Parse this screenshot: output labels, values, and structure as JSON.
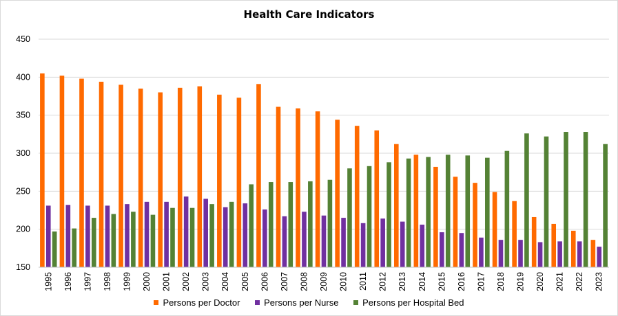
{
  "chart_data": {
    "type": "bar",
    "title": "Health Care Indicators",
    "xlabel": "",
    "ylabel": "",
    "ylim": [
      150,
      450
    ],
    "yticks": [
      150,
      200,
      250,
      300,
      350,
      400,
      450
    ],
    "grid": true,
    "legend_position": "bottom",
    "categories": [
      "1995",
      "1996",
      "1997",
      "1998",
      "1999",
      "2000",
      "2001",
      "2002",
      "2003",
      "2004",
      "2005",
      "2006",
      "2007",
      "2008",
      "2009",
      "2010",
      "2011",
      "2012",
      "2013",
      "2014",
      "2015",
      "2016",
      "2017",
      "2018",
      "2019",
      "2020",
      "2021",
      "2022",
      "2023"
    ],
    "series": [
      {
        "name": "Persons per Doctor",
        "color": "#ff6a00",
        "values": [
          405,
          402,
          398,
          394,
          390,
          385,
          380,
          386,
          388,
          377,
          373,
          391,
          361,
          359,
          355,
          344,
          336,
          330,
          312,
          298,
          282,
          269,
          261,
          249,
          237,
          216,
          207,
          198,
          186
        ]
      },
      {
        "name": "Persons per Nurse",
        "color": "#7030a0",
        "values": [
          231,
          232,
          231,
          231,
          233,
          236,
          236,
          243,
          240,
          229,
          234,
          226,
          217,
          223,
          218,
          215,
          208,
          214,
          210,
          206,
          196,
          195,
          189,
          186,
          186,
          183,
          184,
          184,
          177
        ]
      },
      {
        "name": "Persons per Hospital Bed",
        "color": "#548235",
        "values": [
          197,
          201,
          215,
          220,
          223,
          219,
          228,
          228,
          233,
          236,
          259,
          262,
          262,
          263,
          265,
          280,
          283,
          288,
          293,
          295,
          298,
          297,
          294,
          303,
          326,
          322,
          328,
          328,
          312
        ]
      }
    ]
  }
}
